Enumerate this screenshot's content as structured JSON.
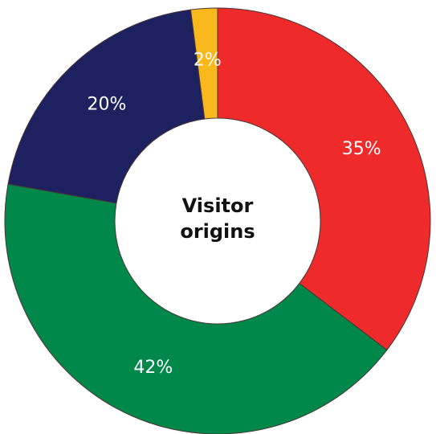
{
  "chart_data": {
    "type": "donut",
    "title": "Visitor origins",
    "values": [
      35,
      42,
      20,
      2
    ],
    "value_labels": [
      "35%",
      "42%",
      "20%",
      "2%"
    ],
    "colors": [
      "#ee2a2b",
      "#00874a",
      "#1d2160",
      "#f9b91c"
    ]
  }
}
